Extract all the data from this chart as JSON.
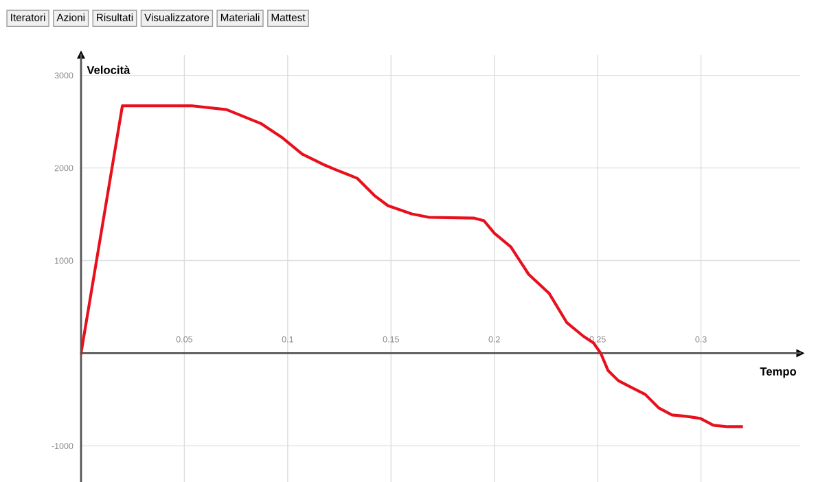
{
  "chart_data": {
    "type": "line",
    "xlabel": "Tempo",
    "ylabel": "Velocità",
    "annotations": [
      "Iteratori",
      "Azioni",
      "Risultati",
      "Visualizzatore",
      "Materiali",
      "Mattest"
    ],
    "x": [
      0,
      0.02,
      0.054,
      0.0704,
      0.087,
      0.097,
      0.107,
      0.117,
      0.1236,
      0.1336,
      0.1419,
      0.1485,
      0.16,
      0.1684,
      0.19,
      0.195,
      0.2,
      0.208,
      0.2166,
      0.2266,
      0.235,
      0.243,
      0.248,
      0.2515,
      0.255,
      0.26,
      0.2664,
      0.273,
      0.2797,
      0.286,
      0.293,
      0.2997,
      0.306,
      0.313,
      0.3196
    ],
    "series": [
      {
        "color": "#e8101c",
        "values": [
          0,
          2670,
          2670,
          2630,
          2480,
          2333,
          2150,
          2040,
          1978,
          1889,
          1704,
          1593,
          1504,
          1467,
          1459,
          1430,
          1296,
          1148,
          852,
          644,
          333,
          185,
          111,
          0,
          -185,
          -296,
          -370,
          -444,
          -593,
          -667,
          -681,
          -704,
          -778,
          -793,
          -793
        ]
      }
    ],
    "xlim": [
      0,
      0.348
    ],
    "ylim": [
      -1390,
      3220
    ],
    "xticks": [
      0.05,
      0.1,
      0.15,
      0.2,
      0.25,
      0.3
    ],
    "yticks": [
      -1000,
      1000,
      2000,
      3000
    ],
    "grid": true,
    "marker": "none",
    "line_style": "solid"
  }
}
